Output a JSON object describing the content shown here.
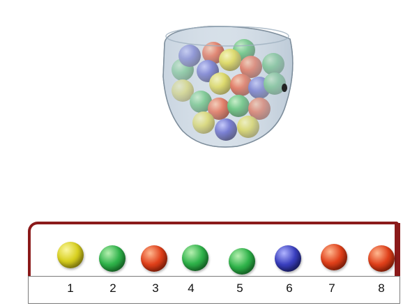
{
  "colors": {
    "yellow": "#d8d020",
    "green": "#2fb34a",
    "red": "#e0401a",
    "blue": "#3a3fbf",
    "tray_border": "#8b1a1a"
  },
  "row": {
    "balls": [
      {
        "number": "1",
        "color": "yellow"
      },
      {
        "number": "2",
        "color": "green"
      },
      {
        "number": "3",
        "color": "red"
      },
      {
        "number": "4",
        "color": "green"
      },
      {
        "number": "5",
        "color": "green"
      },
      {
        "number": "6",
        "color": "blue"
      },
      {
        "number": "7",
        "color": "red"
      },
      {
        "number": "8",
        "color": "red"
      }
    ]
  }
}
